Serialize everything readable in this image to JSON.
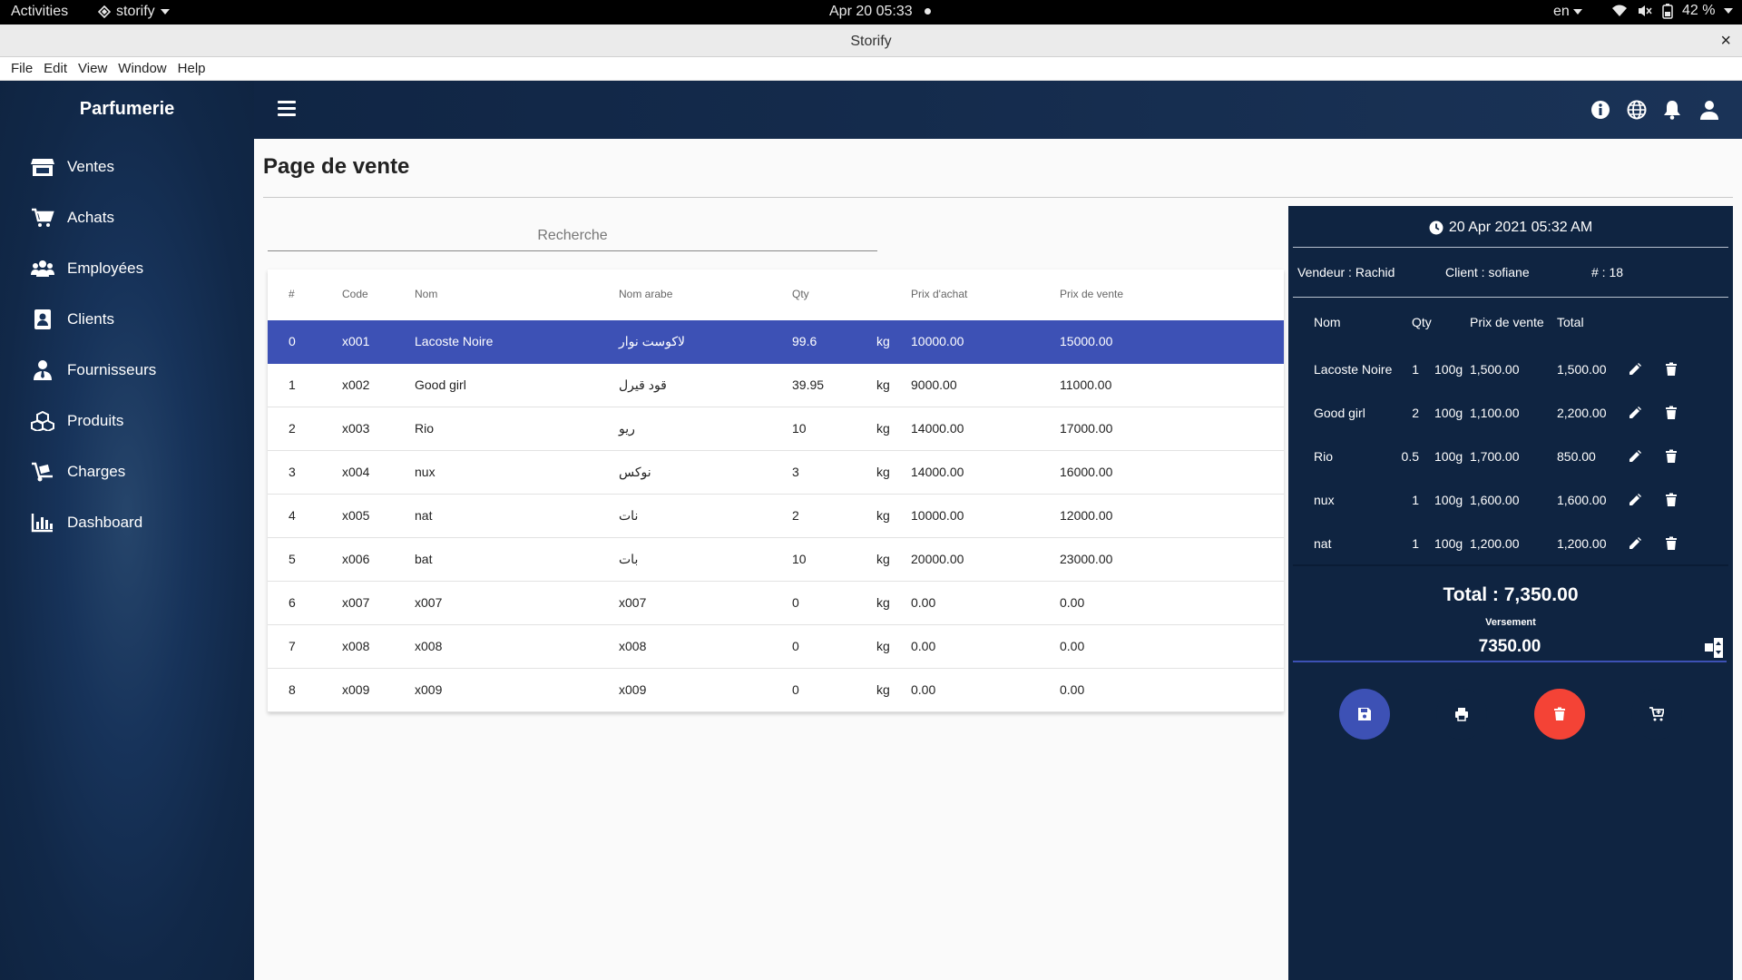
{
  "system": {
    "activities": "Activities",
    "app_name": "storify",
    "clock": "Apr 20  05:33",
    "lang": "en",
    "battery": "42 %"
  },
  "window": {
    "title": "Storify",
    "close": "×"
  },
  "menubar": [
    "File",
    "Edit",
    "View",
    "Window",
    "Help"
  ],
  "sidebar": {
    "brand": "Parfumerie",
    "items": [
      {
        "label": "Ventes",
        "icon": "store-icon"
      },
      {
        "label": "Achats",
        "icon": "cart-icon"
      },
      {
        "label": "Employées",
        "icon": "users-icon"
      },
      {
        "label": "Clients",
        "icon": "contact-icon"
      },
      {
        "label": "Fournisseurs",
        "icon": "user-tie-icon"
      },
      {
        "label": "Produits",
        "icon": "cubes-icon"
      },
      {
        "label": "Charges",
        "icon": "dolly-icon"
      },
      {
        "label": "Dashboard",
        "icon": "bar-chart-icon"
      }
    ]
  },
  "header": {
    "icons": [
      "info-icon",
      "globe-icon",
      "bell-icon",
      "user-icon"
    ]
  },
  "page": {
    "title": "Page de vente"
  },
  "search": {
    "placeholder": "Recherche"
  },
  "table": {
    "headers": [
      "#",
      "Code",
      "Nom",
      "Nom arabe",
      "Qty",
      "Prix d'achat",
      "Prix de vente"
    ],
    "rows": [
      {
        "idx": "0",
        "code": "x001",
        "nom": "Lacoste Noire",
        "arabe": "لاكوست نوار",
        "qty": "99.6",
        "unit": "kg",
        "achat": "10000.00",
        "vente": "15000.00"
      },
      {
        "idx": "1",
        "code": "x002",
        "nom": "Good girl",
        "arabe": "قود قيرل",
        "qty": "39.95",
        "unit": "kg",
        "achat": "9000.00",
        "vente": "11000.00"
      },
      {
        "idx": "2",
        "code": "x003",
        "nom": "Rio",
        "arabe": "ريو",
        "qty": "10",
        "unit": "kg",
        "achat": "14000.00",
        "vente": "17000.00"
      },
      {
        "idx": "3",
        "code": "x004",
        "nom": "nux",
        "arabe": "نوكس",
        "qty": "3",
        "unit": "kg",
        "achat": "14000.00",
        "vente": "16000.00"
      },
      {
        "idx": "4",
        "code": "x005",
        "nom": "nat",
        "arabe": "نات",
        "qty": "2",
        "unit": "kg",
        "achat": "10000.00",
        "vente": "12000.00"
      },
      {
        "idx": "5",
        "code": "x006",
        "nom": "bat",
        "arabe": "بات",
        "qty": "10",
        "unit": "kg",
        "achat": "20000.00",
        "vente": "23000.00"
      },
      {
        "idx": "6",
        "code": "x007",
        "nom": "x007",
        "arabe": "x007",
        "qty": "0",
        "unit": "kg",
        "achat": "0.00",
        "vente": "0.00"
      },
      {
        "idx": "7",
        "code": "x008",
        "nom": "x008",
        "arabe": "x008",
        "qty": "0",
        "unit": "kg",
        "achat": "0.00",
        "vente": "0.00"
      },
      {
        "idx": "8",
        "code": "x009",
        "nom": "x009",
        "arabe": "x009",
        "qty": "0",
        "unit": "kg",
        "achat": "0.00",
        "vente": "0.00"
      }
    ]
  },
  "sale": {
    "datetime": "20 Apr 2021 05:32 AM",
    "vendeur": "Vendeur : Rachid",
    "client": "Client : sofiane",
    "number": "# : 18",
    "headers": [
      "Nom",
      "Qty",
      "Prix de vente",
      "Total"
    ],
    "items": [
      {
        "nom": "Lacoste Noire",
        "qty": "1",
        "unit": "100g",
        "prix": "1,500.00",
        "total": "1,500.00"
      },
      {
        "nom": "Good girl",
        "qty": "2",
        "unit": "100g",
        "prix": "1,100.00",
        "total": "2,200.00"
      },
      {
        "nom": "Rio",
        "qty": "0.5",
        "unit": "100g",
        "prix": "1,700.00",
        "total": "850.00"
      },
      {
        "nom": "nux",
        "qty": "1",
        "unit": "100g",
        "prix": "1,600.00",
        "total": "1,600.00"
      },
      {
        "nom": "nat",
        "qty": "1",
        "unit": "100g",
        "prix": "1,200.00",
        "total": "1,200.00"
      }
    ],
    "total": "Total : 7,350.00",
    "versement_label": "Versement",
    "versement_value": "7350.00"
  },
  "colors": {
    "primary": "#3d51b5",
    "danger": "#f44336",
    "navy": "#0f2441"
  }
}
